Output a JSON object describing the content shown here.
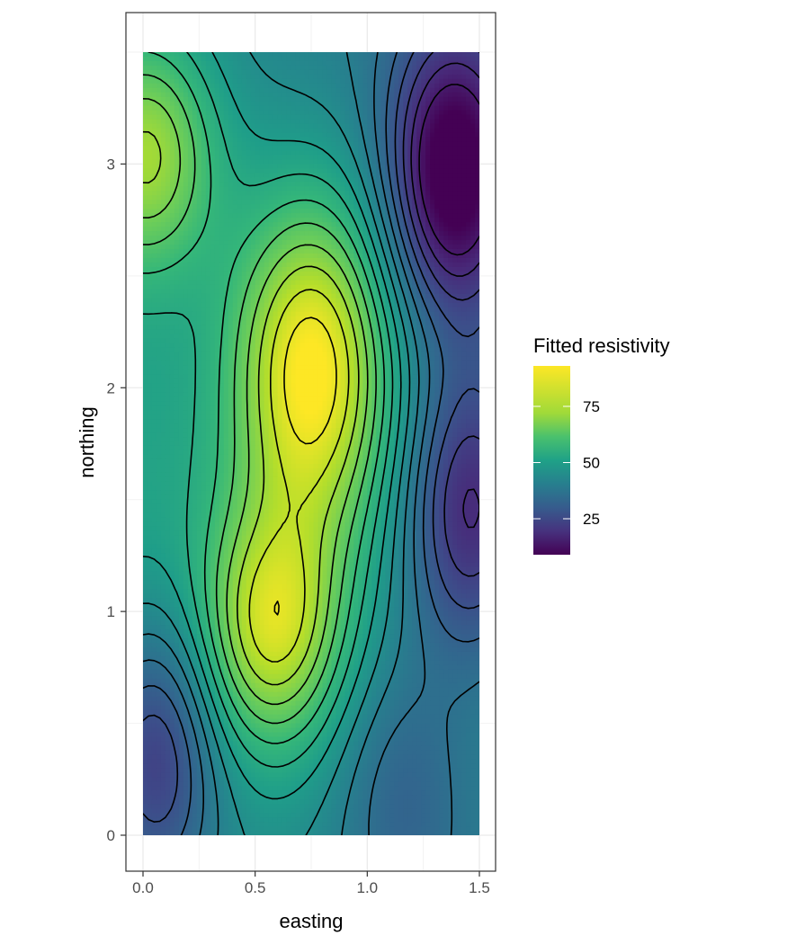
{
  "chart_data": {
    "type": "heatmap",
    "subtype": "filled-contour",
    "title": "",
    "xlabel": "easting",
    "ylabel": "northing",
    "xlim": [
      0,
      1.5
    ],
    "ylim": [
      0,
      3.5
    ],
    "x_ticks": [
      0.0,
      0.5,
      1.0,
      1.5
    ],
    "x_tick_labels": [
      "0.0",
      "0.5",
      "1.0",
      "1.5"
    ],
    "y_ticks": [
      0,
      1,
      2,
      3
    ],
    "y_tick_labels": [
      "0",
      "1",
      "2",
      "3"
    ],
    "grid": true,
    "theme": "bw",
    "colorscale": "viridis",
    "contour_lines": true,
    "contour_line_color": "#000000",
    "legend": {
      "title": "Fitted resistivity",
      "placement": "right",
      "range": [
        9,
        93
      ],
      "ticks": [
        25,
        50,
        75
      ],
      "tick_labels": [
        "25",
        "50",
        "75"
      ]
    },
    "features": [
      {
        "kind": "peak",
        "x": 0.76,
        "y": 2.1,
        "value": 93
      },
      {
        "kind": "peak",
        "x": 0.58,
        "y": 0.92,
        "value": 82
      },
      {
        "kind": "peak",
        "x": 0.02,
        "y": 3.05,
        "value": 80
      },
      {
        "kind": "trough",
        "x": 1.38,
        "y": 2.95,
        "value": 9
      },
      {
        "kind": "trough",
        "x": 1.45,
        "y": 1.45,
        "value": 20
      },
      {
        "kind": "trough",
        "x": 0.05,
        "y": 0.35,
        "value": 20
      },
      {
        "kind": "trough",
        "x": 1.15,
        "y": 0.2,
        "value": 38
      }
    ]
  }
}
